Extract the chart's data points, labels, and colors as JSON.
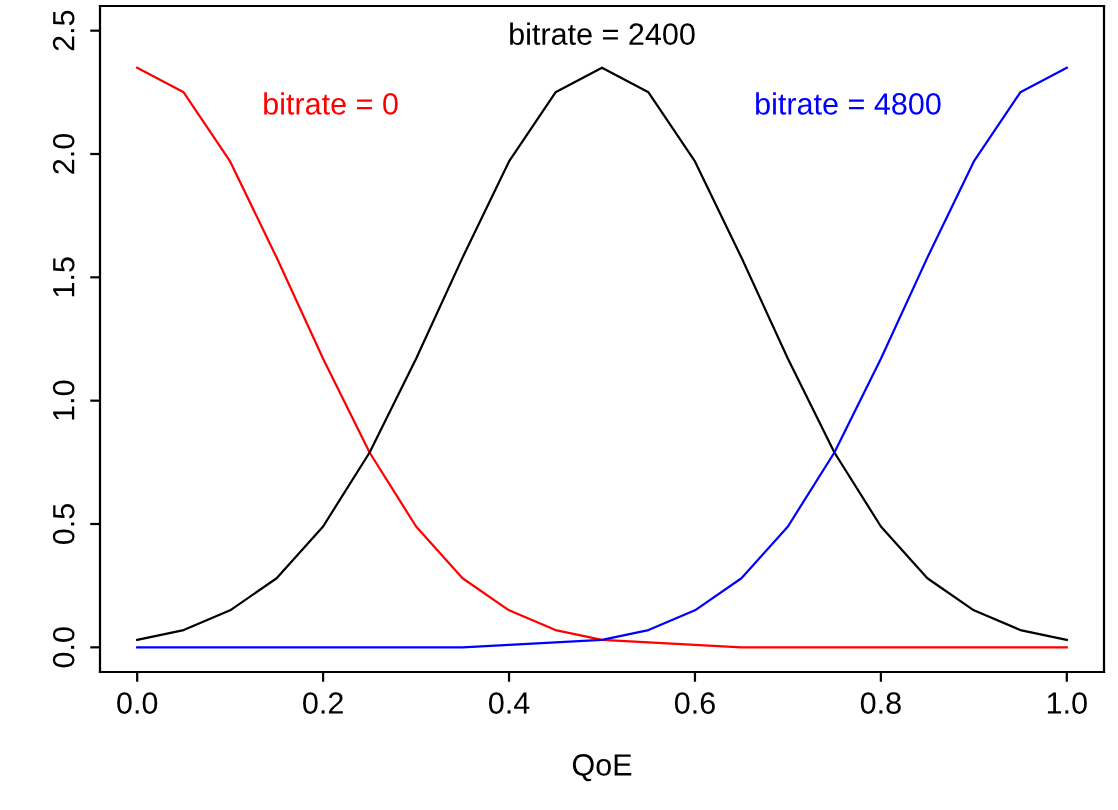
{
  "chart_data": {
    "type": "line",
    "xlabel": "QoE",
    "x": [
      0,
      0.05,
      0.1,
      0.15,
      0.2,
      0.25,
      0.3,
      0.35,
      0.4,
      0.45,
      0.5,
      0.55,
      0.6,
      0.65,
      0.7,
      0.75,
      0.8,
      0.85,
      0.9,
      0.95,
      1.0
    ],
    "series": [
      {
        "name": "bitrate = 0",
        "color": "#ff0000",
        "values": [
          2.35,
          2.25,
          1.97,
          1.58,
          1.17,
          0.79,
          0.49,
          0.28,
          0.15,
          0.07,
          0.03,
          0.02,
          0.01,
          0,
          0,
          0,
          0,
          0,
          0,
          0,
          0
        ]
      },
      {
        "name": "bitrate = 2400",
        "color": "#000000",
        "values": [
          0.03,
          0.07,
          0.15,
          0.28,
          0.49,
          0.79,
          1.17,
          1.58,
          1.97,
          2.25,
          2.35,
          2.25,
          1.97,
          1.58,
          1.17,
          0.79,
          0.49,
          0.28,
          0.15,
          0.07,
          0.03
        ]
      },
      {
        "name": "bitrate = 4800",
        "color": "#0000ff",
        "values": [
          0,
          0,
          0,
          0,
          0,
          0,
          0,
          0,
          0.01,
          0.02,
          0.03,
          0.07,
          0.15,
          0.28,
          0.49,
          0.79,
          1.17,
          1.58,
          1.97,
          2.25,
          2.35
        ]
      }
    ],
    "xlim": [
      -0.04,
      1.04
    ],
    "ylim": [
      -0.1,
      2.6
    ],
    "xticks": [
      {
        "value": 0,
        "label": "0.0"
      },
      0.2,
      0.4,
      0.6,
      0.8,
      {
        "value": 1,
        "label": "1.0"
      }
    ],
    "yticks": [
      {
        "value": 0,
        "label": "0.0"
      },
      0.5,
      {
        "value": 1,
        "label": "1.0"
      },
      1.5,
      {
        "value": 2,
        "label": "2.0"
      },
      2.5
    ],
    "grid": false,
    "legend": false,
    "line_style": "solid",
    "marker": "none"
  }
}
